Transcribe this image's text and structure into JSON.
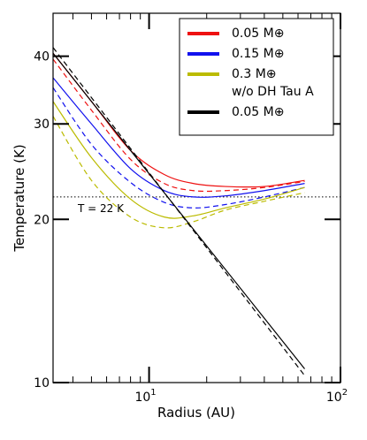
{
  "chart_data": {
    "type": "line",
    "xlabel": "Radius (AU)",
    "ylabel": "Temperature (K)",
    "xscale": "log",
    "yscale": "log",
    "xlim": [
      3.15,
      100
    ],
    "ylim": [
      10,
      48
    ],
    "x_ticks": [
      {
        "value": 10,
        "base": "10",
        "exp": "1"
      },
      {
        "value": 100,
        "base": "10",
        "exp": "2"
      }
    ],
    "y_ticks": [
      {
        "value": 10,
        "label": "10"
      },
      {
        "value": 20,
        "label": "20"
      },
      {
        "value": 30,
        "label": "30"
      },
      {
        "value": 40,
        "label": "40"
      }
    ],
    "reference_line": {
      "y": 22,
      "style": "dotted",
      "label": "T = 22 K"
    },
    "legend": {
      "position": "top-right",
      "entries": [
        {
          "label": "0.05 M⊕",
          "color": "#ee1111"
        },
        {
          "label": "0.15 M⊕",
          "color": "#1111ee"
        },
        {
          "label": "0.3 M⊕",
          "color": "#bbbb00"
        },
        {
          "label": "w/o DH Tau A",
          "color": null
        },
        {
          "label": "0.05 M⊕",
          "color": "#000000"
        }
      ]
    },
    "series": [
      {
        "color": "#ee1111",
        "dash": "solid",
        "points": [
          [
            3.15,
            40.5
          ],
          [
            5,
            33
          ],
          [
            8,
            26.8
          ],
          [
            12,
            24.2
          ],
          [
            17,
            23.3
          ],
          [
            25,
            23.0
          ],
          [
            40,
            23.0
          ],
          [
            65,
            23.6
          ]
        ]
      },
      {
        "color": "#ee1111",
        "dash": "dashed",
        "points": [
          [
            3.15,
            39.5
          ],
          [
            5,
            31.8
          ],
          [
            8,
            25.8
          ],
          [
            12,
            23.3
          ],
          [
            17,
            22.6
          ],
          [
            25,
            22.6
          ],
          [
            40,
            22.9
          ],
          [
            65,
            23.5
          ]
        ]
      },
      {
        "color": "#1111ee",
        "dash": "solid",
        "points": [
          [
            3.15,
            36.5
          ],
          [
            5,
            30
          ],
          [
            8,
            24.8
          ],
          [
            12,
            22.6
          ],
          [
            17,
            22.0
          ],
          [
            25,
            22.1
          ],
          [
            40,
            22.6
          ],
          [
            65,
            23.3
          ]
        ]
      },
      {
        "color": "#1111ee",
        "dash": "dashed",
        "points": [
          [
            3.15,
            35
          ],
          [
            5,
            27.5
          ],
          [
            8,
            23.4
          ],
          [
            12,
            21.5
          ],
          [
            17,
            21.0
          ],
          [
            25,
            21.3
          ],
          [
            40,
            22.0
          ],
          [
            65,
            22.9
          ]
        ]
      },
      {
        "color": "#bbbb00",
        "dash": "solid",
        "points": [
          [
            3.15,
            33
          ],
          [
            5,
            26
          ],
          [
            8,
            21.8
          ],
          [
            12,
            20.2
          ],
          [
            17,
            20.3
          ],
          [
            25,
            21.0
          ],
          [
            40,
            21.8
          ],
          [
            65,
            22.9
          ]
        ]
      },
      {
        "color": "#bbbb00",
        "dash": "dashed",
        "points": [
          [
            3.15,
            31
          ],
          [
            5,
            23.6
          ],
          [
            8,
            20.2
          ],
          [
            12,
            19.3
          ],
          [
            17,
            19.8
          ],
          [
            25,
            20.8
          ],
          [
            40,
            21.6
          ],
          [
            65,
            22.4
          ]
        ]
      },
      {
        "color": "#000000",
        "dash": "solid",
        "points": [
          [
            3.15,
            40.5
          ],
          [
            65,
            10.6
          ]
        ]
      },
      {
        "color": "#000000",
        "dash": "dashed",
        "points": [
          [
            3.15,
            41.5
          ],
          [
            65,
            10.3
          ]
        ]
      }
    ]
  }
}
